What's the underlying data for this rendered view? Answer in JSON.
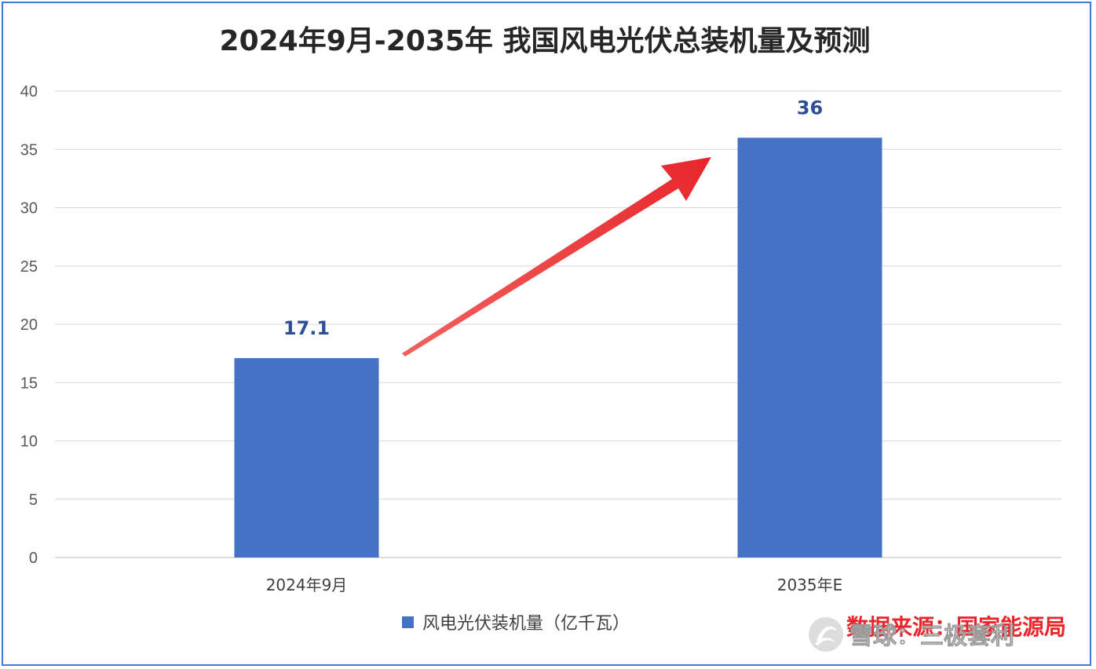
{
  "chart_data": {
    "type": "bar",
    "title": "2024年9月-2035年 我国风电光伏总装机量及预测",
    "categories": [
      "2024年9月",
      "2035年E"
    ],
    "series": [
      {
        "name": "风电光伏装机量（亿千瓦）",
        "values": [
          17.1,
          36
        ],
        "labels": [
          "17.1",
          "36"
        ],
        "color": "#4472c4"
      }
    ],
    "ylim": [
      0,
      40
    ],
    "yticks": [
      0,
      5,
      10,
      15,
      20,
      25,
      30,
      35,
      40
    ],
    "grid": true,
    "legend": "bottom-center",
    "annotation": "arrow-up-right"
  },
  "source_note": "数据来源：国家能源局",
  "watermark": "雪球：三极套利",
  "colors": {
    "bar": "#4472c4",
    "arrow": "#e8262b",
    "source": "#e8262b",
    "border": "#3a7fd1",
    "grid": "#d9d9d9"
  }
}
